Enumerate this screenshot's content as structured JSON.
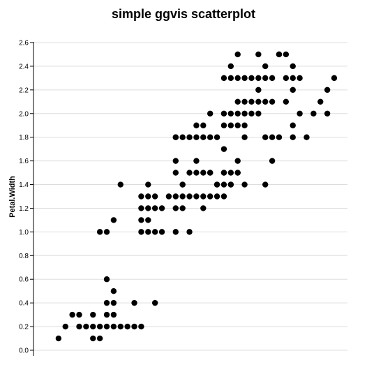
{
  "chart_data": {
    "type": "scatter",
    "title": "simple ggvis scatterplot",
    "xlabel": "",
    "ylabel": "Petal.Width",
    "ylim": [
      0,
      2.6
    ],
    "y_ticks": [
      "0.0",
      "0.2",
      "0.4",
      "0.6",
      "0.8",
      "1.0",
      "1.2",
      "1.4",
      "1.6",
      "1.8",
      "2.0",
      "2.2",
      "2.4",
      "2.6"
    ],
    "grid": true,
    "marker_color": "#000000",
    "gridline_color": "#dddddd",
    "points": [
      [
        4.3,
        0.1
      ],
      [
        4.4,
        0.2
      ],
      [
        4.5,
        0.3
      ],
      [
        4.6,
        0.2
      ],
      [
        4.6,
        0.3
      ],
      [
        4.7,
        0.2
      ],
      [
        4.8,
        0.1
      ],
      [
        4.8,
        0.2
      ],
      [
        4.8,
        0.3
      ],
      [
        4.9,
        0.1
      ],
      [
        4.9,
        0.2
      ],
      [
        5.0,
        0.2
      ],
      [
        5.0,
        0.3
      ],
      [
        5.0,
        0.4
      ],
      [
        5.0,
        0.6
      ],
      [
        5.1,
        0.2
      ],
      [
        5.1,
        0.3
      ],
      [
        5.1,
        0.4
      ],
      [
        5.1,
        0.5
      ],
      [
        5.2,
        0.2
      ],
      [
        5.3,
        0.2
      ],
      [
        5.4,
        0.2
      ],
      [
        5.4,
        0.4
      ],
      [
        5.5,
        0.2
      ],
      [
        5.7,
        0.4
      ],
      [
        4.9,
        1.0
      ],
      [
        5.0,
        1.0
      ],
      [
        5.2,
        1.4
      ],
      [
        5.1,
        1.1
      ],
      [
        5.6,
        1.0
      ],
      [
        5.7,
        1.0
      ],
      [
        5.8,
        1.0
      ],
      [
        6.0,
        1.0
      ],
      [
        6.2,
        1.0
      ],
      [
        5.5,
        1.0
      ],
      [
        5.5,
        1.1
      ],
      [
        5.5,
        1.2
      ],
      [
        5.5,
        1.3
      ],
      [
        5.6,
        1.1
      ],
      [
        5.6,
        1.2
      ],
      [
        5.6,
        1.3
      ],
      [
        5.6,
        1.4
      ],
      [
        5.7,
        1.2
      ],
      [
        5.7,
        1.3
      ],
      [
        5.8,
        1.2
      ],
      [
        5.9,
        1.3
      ],
      [
        6.0,
        1.3
      ],
      [
        6.1,
        1.2
      ],
      [
        6.1,
        1.3
      ],
      [
        6.2,
        1.3
      ],
      [
        6.2,
        1.5
      ],
      [
        6.3,
        1.3
      ],
      [
        6.4,
        1.3
      ],
      [
        6.5,
        1.3
      ],
      [
        6.6,
        1.3
      ],
      [
        6.6,
        1.4
      ],
      [
        6.7,
        1.3
      ],
      [
        6.8,
        1.4
      ],
      [
        6.9,
        1.5
      ],
      [
        7.0,
        1.4
      ],
      [
        6.4,
        1.5
      ],
      [
        6.5,
        1.5
      ],
      [
        6.6,
        1.4
      ],
      [
        6.0,
        1.2
      ],
      [
        6.4,
        1.2
      ],
      [
        6.1,
        1.4
      ],
      [
        6.3,
        1.6
      ],
      [
        6.0,
        1.6
      ],
      [
        6.7,
        1.4
      ],
      [
        6.1,
        1.4
      ],
      [
        6.0,
        1.5
      ],
      [
        6.3,
        1.5
      ],
      [
        6.5,
        1.5
      ],
      [
        6.7,
        1.5
      ],
      [
        6.8,
        1.4
      ],
      [
        6.7,
        1.7
      ],
      [
        6.9,
        1.5
      ],
      [
        6.2,
        1.8
      ],
      [
        6.3,
        1.8
      ],
      [
        6.4,
        1.8
      ],
      [
        6.5,
        1.8
      ],
      [
        6.1,
        1.8
      ],
      [
        6.0,
        1.8
      ],
      [
        6.3,
        1.9
      ],
      [
        6.4,
        1.9
      ],
      [
        6.5,
        2.0
      ],
      [
        6.7,
        2.0
      ],
      [
        6.8,
        2.0
      ],
      [
        6.9,
        2.1
      ],
      [
        7.0,
        2.1
      ],
      [
        7.1,
        2.1
      ],
      [
        7.2,
        2.1
      ],
      [
        7.3,
        2.1
      ],
      [
        7.4,
        2.1
      ],
      [
        7.6,
        2.1
      ],
      [
        7.2,
        2.2
      ],
      [
        7.7,
        2.2
      ],
      [
        7.1,
        2.3
      ],
      [
        7.2,
        2.3
      ],
      [
        7.3,
        2.3
      ],
      [
        7.4,
        2.3
      ],
      [
        7.6,
        2.3
      ],
      [
        7.8,
        2.3
      ],
      [
        7.7,
        2.3
      ],
      [
        7.7,
        2.4
      ],
      [
        7.3,
        2.4
      ],
      [
        7.2,
        2.5
      ],
      [
        7.5,
        2.5
      ],
      [
        7.6,
        2.5
      ],
      [
        6.7,
        2.3
      ],
      [
        6.8,
        2.3
      ],
      [
        6.9,
        2.3
      ],
      [
        7.0,
        2.3
      ],
      [
        6.8,
        2.4
      ],
      [
        6.9,
        2.5
      ],
      [
        6.9,
        2.0
      ],
      [
        7.0,
        2.0
      ],
      [
        7.1,
        2.0
      ],
      [
        7.2,
        2.0
      ],
      [
        7.3,
        1.8
      ],
      [
        7.4,
        1.8
      ],
      [
        7.7,
        1.8
      ],
      [
        7.9,
        1.8
      ],
      [
        7.4,
        1.6
      ],
      [
        7.5,
        1.8
      ],
      [
        7.0,
        1.8
      ],
      [
        6.6,
        1.8
      ],
      [
        6.7,
        1.9
      ],
      [
        6.8,
        1.9
      ],
      [
        6.9,
        1.9
      ],
      [
        7.3,
        1.4
      ],
      [
        7.7,
        1.9
      ],
      [
        6.7,
        1.5
      ],
      [
        6.8,
        1.5
      ],
      [
        6.9,
        1.6
      ],
      [
        7.0,
        1.9
      ],
      [
        8.0,
        2.0
      ],
      [
        8.1,
        2.1
      ],
      [
        8.2,
        2.2
      ],
      [
        8.3,
        2.3
      ],
      [
        8.2,
        2.0
      ],
      [
        7.8,
        2.0
      ],
      [
        7.5,
        2.5
      ],
      [
        6.0,
        1.8
      ]
    ]
  }
}
